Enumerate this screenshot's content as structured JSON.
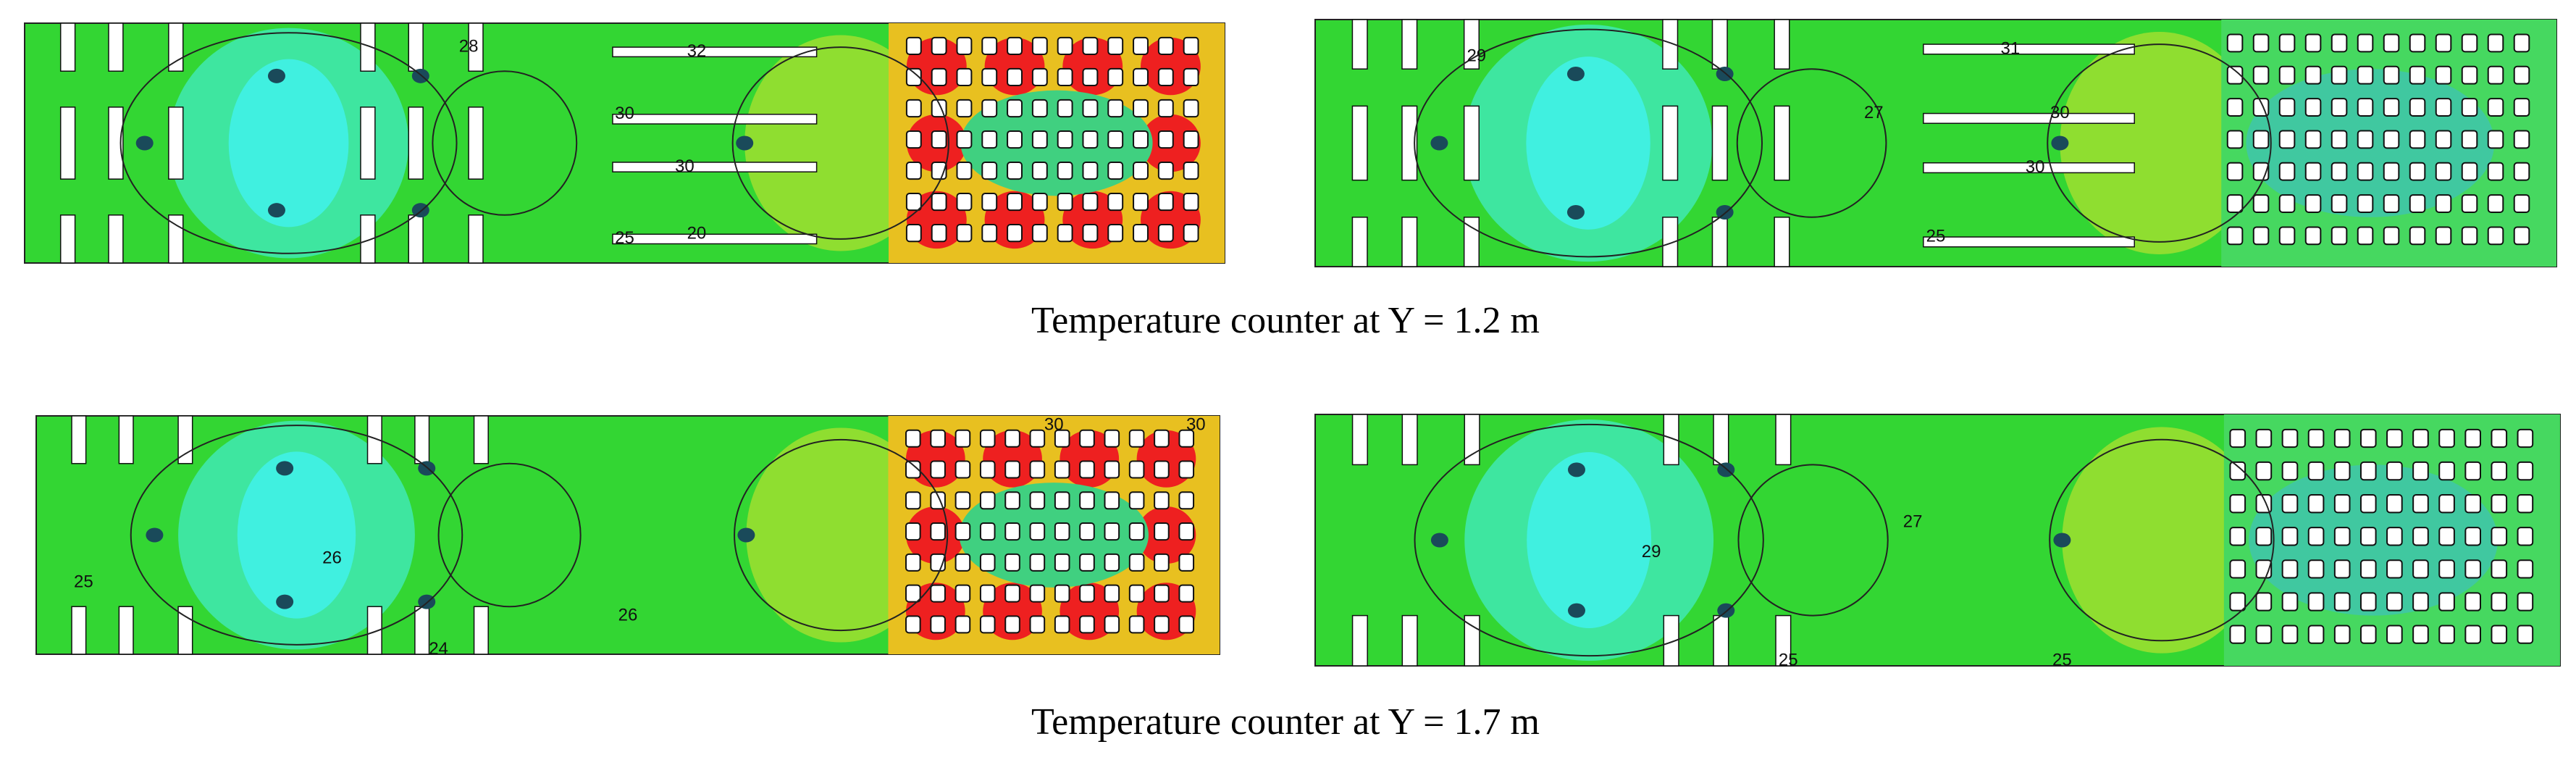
{
  "figure": {
    "captions": [
      "Temperature counter at Y = 1.2 m",
      "Temperature counter at Y = 1.7 m"
    ],
    "panels": [
      {
        "labels": [
          "32",
          "30",
          "30",
          "25",
          "20",
          "28"
        ]
      },
      {
        "labels": [
          "31",
          "30",
          "30",
          "27",
          "25",
          "29"
        ]
      },
      {
        "labels": [
          "30",
          "26",
          "26",
          "25",
          "24",
          "30"
        ]
      },
      {
        "labels": [
          "27",
          "29",
          "25",
          "25"
        ]
      }
    ]
  }
}
